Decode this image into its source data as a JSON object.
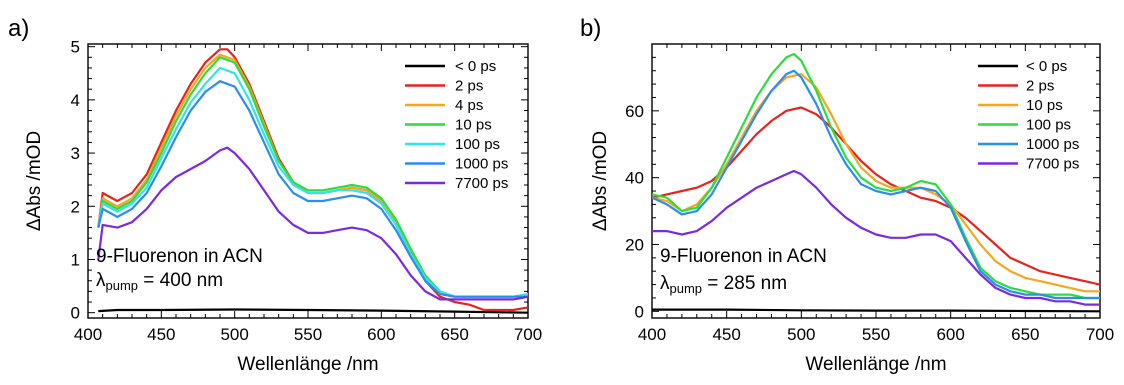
{
  "chart_data": [
    {
      "type": "line",
      "panel_label": "a)",
      "xlabel": "Wellenlänge /nm",
      "ylabel": "ΔAbs /mOD",
      "xlim": [
        400,
        700
      ],
      "ylim": [
        -0.1,
        5.05
      ],
      "xticks": [
        400,
        450,
        500,
        550,
        600,
        650,
        700
      ],
      "yticks": [
        0,
        1,
        2,
        3,
        4,
        5
      ],
      "annotation": {
        "line1": "9-Fluorenon in ACN",
        "symbol": "λ",
        "subscript": "pump",
        "rest": " = 400 nm"
      },
      "legend_position": "top-right",
      "series": [
        {
          "name": "< 0 ps",
          "color": "#000000",
          "x": [
            407,
            420,
            450,
            500,
            550,
            600,
            650,
            700
          ],
          "y": [
            0.03,
            0.05,
            0.05,
            0.06,
            0.05,
            0.04,
            0.02,
            0.0
          ]
        },
        {
          "name": "2 ps",
          "color": "#e8231b",
          "x": [
            407,
            410,
            420,
            430,
            440,
            450,
            460,
            470,
            480,
            490,
            495,
            500,
            510,
            520,
            530,
            540,
            550,
            560,
            570,
            580,
            590,
            600,
            610,
            620,
            630,
            640,
            650,
            660,
            670,
            680,
            690,
            700
          ],
          "y": [
            1.6,
            2.25,
            2.1,
            2.25,
            2.6,
            3.2,
            3.8,
            4.3,
            4.7,
            4.95,
            4.95,
            4.8,
            4.3,
            3.6,
            2.9,
            2.45,
            2.25,
            2.25,
            2.3,
            2.35,
            2.3,
            2.1,
            1.7,
            1.1,
            0.6,
            0.3,
            0.2,
            0.15,
            0.05,
            0.05,
            0.05,
            0.1
          ]
        },
        {
          "name": "4 ps",
          "color": "#f5a623",
          "x": [
            407,
            410,
            420,
            430,
            440,
            450,
            460,
            470,
            480,
            490,
            500,
            510,
            520,
            530,
            540,
            550,
            560,
            570,
            580,
            590,
            600,
            610,
            620,
            630,
            640,
            650,
            660,
            670,
            680,
            690,
            700
          ],
          "y": [
            1.6,
            2.15,
            2.0,
            2.15,
            2.5,
            3.1,
            3.7,
            4.2,
            4.6,
            4.85,
            4.75,
            4.25,
            3.55,
            2.85,
            2.45,
            2.25,
            2.25,
            2.3,
            2.35,
            2.3,
            2.1,
            1.7,
            1.15,
            0.65,
            0.35,
            0.3,
            0.3,
            0.3,
            0.3,
            0.3,
            0.3
          ]
        },
        {
          "name": "10 ps",
          "color": "#2edc3c",
          "x": [
            407,
            410,
            420,
            430,
            440,
            450,
            460,
            470,
            480,
            490,
            500,
            510,
            520,
            530,
            540,
            550,
            560,
            570,
            580,
            590,
            600,
            610,
            620,
            630,
            640,
            650,
            660,
            670,
            680,
            690,
            700
          ],
          "y": [
            1.6,
            2.1,
            1.95,
            2.1,
            2.45,
            3.0,
            3.6,
            4.1,
            4.5,
            4.8,
            4.7,
            4.2,
            3.5,
            2.85,
            2.45,
            2.3,
            2.3,
            2.35,
            2.4,
            2.35,
            2.15,
            1.75,
            1.2,
            0.7,
            0.4,
            0.3,
            0.3,
            0.3,
            0.3,
            0.3,
            0.35
          ]
        },
        {
          "name": "100 ps",
          "color": "#34e2ec",
          "x": [
            407,
            410,
            420,
            430,
            440,
            450,
            460,
            470,
            480,
            490,
            500,
            510,
            520,
            530,
            540,
            550,
            560,
            570,
            580,
            590,
            600,
            610,
            620,
            630,
            640,
            650,
            660,
            670,
            680,
            690,
            700
          ],
          "y": [
            1.6,
            2.05,
            1.9,
            2.05,
            2.35,
            2.9,
            3.45,
            3.95,
            4.3,
            4.6,
            4.5,
            4.0,
            3.35,
            2.75,
            2.4,
            2.25,
            2.25,
            2.3,
            2.3,
            2.25,
            2.05,
            1.65,
            1.1,
            0.65,
            0.4,
            0.3,
            0.3,
            0.3,
            0.3,
            0.3,
            0.35
          ]
        },
        {
          "name": "1000 ps",
          "color": "#2a8ef0",
          "x": [
            407,
            410,
            420,
            430,
            440,
            450,
            460,
            470,
            480,
            490,
            500,
            510,
            520,
            530,
            540,
            550,
            560,
            570,
            580,
            590,
            600,
            610,
            620,
            630,
            640,
            650,
            660,
            670,
            680,
            690,
            700
          ],
          "y": [
            1.6,
            1.95,
            1.8,
            1.95,
            2.25,
            2.75,
            3.3,
            3.8,
            4.15,
            4.35,
            4.25,
            3.8,
            3.2,
            2.6,
            2.25,
            2.1,
            2.1,
            2.15,
            2.2,
            2.15,
            1.95,
            1.55,
            1.05,
            0.6,
            0.35,
            0.3,
            0.3,
            0.3,
            0.3,
            0.3,
            0.3
          ]
        },
        {
          "name": "7700 ps",
          "color": "#7a2ae0",
          "x": [
            407,
            410,
            420,
            430,
            440,
            450,
            460,
            470,
            480,
            490,
            495,
            500,
            510,
            520,
            530,
            540,
            550,
            560,
            570,
            580,
            590,
            600,
            610,
            620,
            630,
            640,
            650,
            660,
            670,
            680,
            690,
            700
          ],
          "y": [
            1.0,
            1.65,
            1.6,
            1.7,
            1.95,
            2.3,
            2.55,
            2.7,
            2.85,
            3.05,
            3.1,
            3.0,
            2.7,
            2.3,
            1.9,
            1.65,
            1.5,
            1.5,
            1.55,
            1.6,
            1.55,
            1.4,
            1.1,
            0.7,
            0.4,
            0.25,
            0.25,
            0.25,
            0.25,
            0.25,
            0.25,
            0.3
          ]
        }
      ]
    },
    {
      "type": "line",
      "panel_label": "b)",
      "xlabel": "Wellenlänge /nm",
      "ylabel": "ΔAbs /mOD",
      "xlim": [
        400,
        700
      ],
      "ylim": [
        -2,
        80
      ],
      "xticks": [
        400,
        450,
        500,
        550,
        600,
        650,
        700
      ],
      "yticks": [
        0,
        20,
        40,
        60
      ],
      "annotation": {
        "line1": "9-Fluorenon in ACN",
        "symbol": "λ",
        "subscript": "pump",
        "rest": " = 285 nm"
      },
      "legend_position": "top-right",
      "series": [
        {
          "name": "< 0 ps",
          "color": "#000000",
          "x": [
            400,
            450,
            500,
            550,
            600,
            650,
            700
          ],
          "y": [
            0.5,
            0.5,
            0.3,
            0.2,
            0.2,
            0.1,
            0.0
          ]
        },
        {
          "name": "2 ps",
          "color": "#e8231b",
          "x": [
            400,
            410,
            420,
            430,
            440,
            450,
            460,
            470,
            480,
            490,
            500,
            510,
            520,
            530,
            540,
            550,
            560,
            570,
            580,
            590,
            600,
            610,
            620,
            630,
            640,
            650,
            660,
            670,
            680,
            690,
            700
          ],
          "y": [
            34,
            35,
            36,
            37,
            39,
            43,
            48,
            53,
            57,
            60,
            61,
            59,
            55,
            50,
            45,
            41,
            38,
            36,
            34,
            33,
            31,
            28,
            24,
            20,
            16,
            14,
            12,
            11,
            10,
            9,
            8
          ]
        },
        {
          "name": "10 ps",
          "color": "#f5a623",
          "x": [
            400,
            410,
            420,
            430,
            440,
            450,
            460,
            470,
            480,
            490,
            500,
            510,
            520,
            530,
            540,
            550,
            560,
            570,
            580,
            590,
            600,
            610,
            620,
            630,
            640,
            650,
            660,
            670,
            680,
            690,
            700
          ],
          "y": [
            34,
            33,
            30,
            32,
            37,
            44,
            52,
            60,
            66,
            70,
            71,
            67,
            59,
            50,
            43,
            39,
            37,
            37,
            37,
            35,
            32,
            26,
            20,
            15,
            12,
            10,
            9,
            8,
            7,
            6,
            6
          ]
        },
        {
          "name": "100 ps",
          "color": "#2edc3c",
          "x": [
            400,
            410,
            420,
            430,
            440,
            450,
            460,
            470,
            480,
            490,
            495,
            500,
            510,
            520,
            530,
            540,
            550,
            560,
            570,
            580,
            590,
            600,
            610,
            620,
            630,
            640,
            650,
            660,
            670,
            680,
            690,
            700
          ],
          "y": [
            35,
            34,
            30,
            31,
            37,
            46,
            55,
            64,
            71,
            76,
            77,
            75,
            66,
            55,
            46,
            40,
            37,
            36,
            37,
            39,
            38,
            32,
            22,
            13,
            9,
            7,
            6,
            5,
            5,
            5,
            4,
            4
          ]
        },
        {
          "name": "1000 ps",
          "color": "#2a8ef0",
          "x": [
            400,
            410,
            420,
            430,
            440,
            450,
            460,
            470,
            480,
            490,
            495,
            500,
            510,
            520,
            530,
            540,
            550,
            560,
            570,
            580,
            590,
            600,
            610,
            620,
            630,
            640,
            650,
            660,
            670,
            680,
            690,
            700
          ],
          "y": [
            34,
            32,
            29,
            30,
            35,
            43,
            51,
            59,
            66,
            71,
            72,
            70,
            62,
            52,
            44,
            38,
            36,
            35,
            36,
            37,
            36,
            31,
            21,
            12,
            8,
            6,
            5,
            5,
            4,
            4,
            4,
            4
          ]
        },
        {
          "name": "7700 ps",
          "color": "#7a2ae0",
          "x": [
            400,
            410,
            420,
            430,
            440,
            450,
            460,
            470,
            480,
            490,
            495,
            500,
            510,
            520,
            530,
            540,
            550,
            560,
            570,
            580,
            590,
            600,
            610,
            620,
            630,
            640,
            650,
            660,
            670,
            680,
            690,
            700
          ],
          "y": [
            24,
            24,
            23,
            24,
            27,
            31,
            34,
            37,
            39,
            41,
            42,
            41,
            37,
            32,
            28,
            25,
            23,
            22,
            22,
            23,
            23,
            21,
            16,
            11,
            7,
            5,
            4,
            4,
            3,
            3,
            2,
            2
          ]
        }
      ]
    }
  ]
}
